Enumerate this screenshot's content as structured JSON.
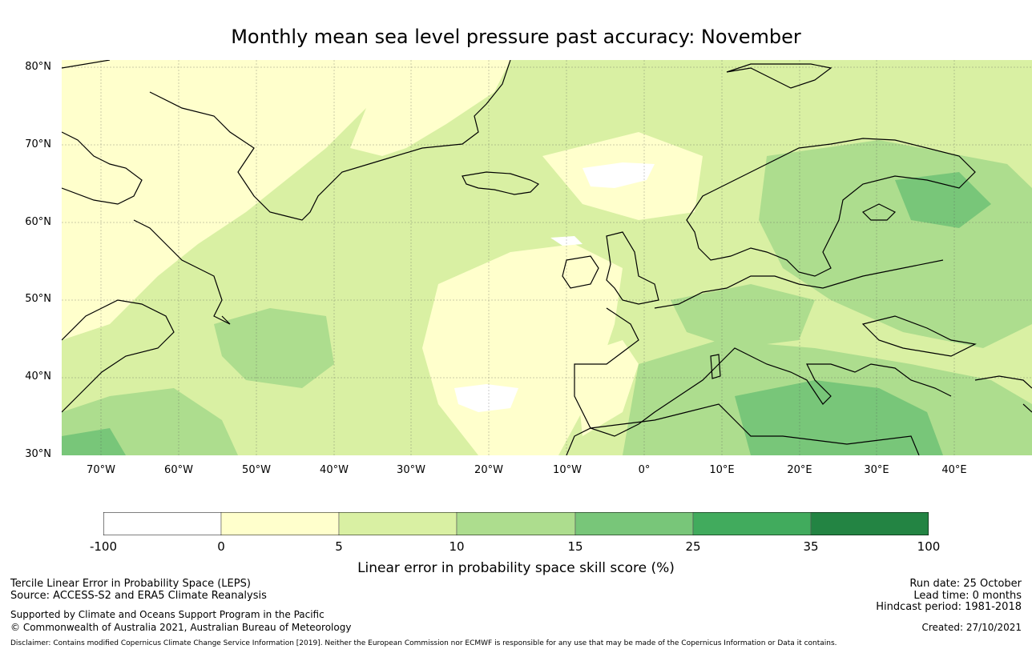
{
  "title": "Monthly mean sea level pressure past accuracy: November",
  "map": {
    "lat_labels": [
      "80°N",
      "70°N",
      "60°N",
      "50°N",
      "40°N",
      "30°N"
    ],
    "lon_labels": [
      "70°W",
      "60°W",
      "50°W",
      "40°W",
      "30°W",
      "20°W",
      "10°W",
      "0°",
      "10°E",
      "20°E",
      "30°E",
      "40°E"
    ]
  },
  "colorbar": {
    "bins": [
      {
        "from": "-100",
        "to": "0",
        "color": "#ffffff"
      },
      {
        "from": "0",
        "to": "5",
        "color": "#ffffcc"
      },
      {
        "from": "5",
        "to": "10",
        "color": "#d9f0a3"
      },
      {
        "from": "10",
        "to": "15",
        "color": "#addd8e"
      },
      {
        "from": "15",
        "to": "25",
        "color": "#78c679"
      },
      {
        "from": "25",
        "to": "35",
        "color": "#41ab5d"
      },
      {
        "from": "35",
        "to": "100",
        "color": "#238443"
      }
    ],
    "ticks": [
      "-100",
      "0",
      "5",
      "10",
      "15",
      "25",
      "35",
      "100"
    ],
    "label": "Linear error in probability space skill score (%)"
  },
  "footer": {
    "line1": "Tercile Linear Error in Probability Space (LEPS)",
    "line2": "Source: ACCESS-S2 and ERA5 Climate Reanalysis",
    "line3": "Supported by Climate and Oceans Support Program in the Pacific",
    "line4": "© Commonwealth of Australia 2021, Australian Bureau of Meteorology",
    "run_date": "Run date: 25 October",
    "lead_time": "Lead time: 0 months",
    "hindcast": "Hindcast period: 1981-2018",
    "created": "Created: 27/10/2021",
    "disclaimer": "Disclaimer: Contains modified Copernicus Climate Change Service Information [2019]. Neither the European Commission nor ECMWF is responsible for any use that may be made of the Copernicus Information or Data it contains."
  }
}
